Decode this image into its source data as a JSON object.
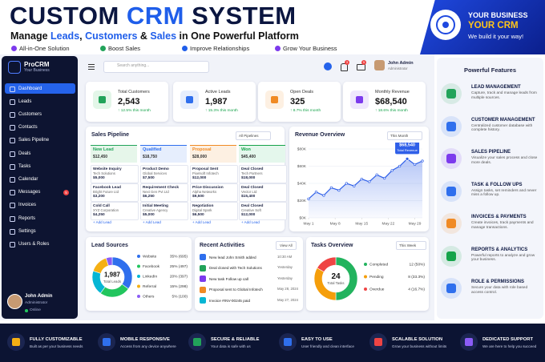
{
  "header": {
    "title": [
      "CUSTOM ",
      "CRM",
      " SYSTEM"
    ],
    "subtitle": [
      "Manage ",
      "Leads",
      ", ",
      "Customers",
      " & ",
      "Sales",
      " in One Powerful Platform"
    ],
    "tags": [
      "All-in-One Solution",
      "Boost Sales",
      "Improve Relationships",
      "Grow Your Business"
    ]
  },
  "badge": {
    "line1": "YOUR BUSINESS",
    "line2": "YOUR CRM",
    "line3": "We build it your way!"
  },
  "sidebar": {
    "brand": "ProCRM",
    "brand_sub": "Your Business",
    "menu": [
      {
        "label": "Dashboard"
      },
      {
        "label": "Leads"
      },
      {
        "label": "Customers"
      },
      {
        "label": "Contacts"
      },
      {
        "label": "Sales Pipeline"
      },
      {
        "label": "Deals"
      },
      {
        "label": "Tasks"
      },
      {
        "label": "Calendar"
      },
      {
        "label": "Messages",
        "badge": 5
      },
      {
        "label": "Invoices"
      },
      {
        "label": "Reports"
      },
      {
        "label": "Settings"
      },
      {
        "label": "Users & Roles"
      }
    ],
    "user": {
      "name": "John Admin",
      "role": "Administrator",
      "status": "Online"
    }
  },
  "topbar": {
    "search": "Search anything...",
    "notifications": 3,
    "mail": 5,
    "user": {
      "name": "John Admin",
      "role": "Administrator"
    }
  },
  "stats": [
    {
      "label": "Total Customers",
      "value": "2,543",
      "change": "↑ 12.5% this month"
    },
    {
      "label": "Active Leads",
      "value": "1,987",
      "change": "↑ 15.3% this month"
    },
    {
      "label": "Open Deals",
      "value": "325",
      "change": "↑ 8.7% this month"
    },
    {
      "label": "Monthly Revenue",
      "value": "$68,540",
      "change": "↑ 18.6% this month"
    }
  ],
  "pipeline": {
    "title": "Sales Pipeline",
    "filter": "All Pipelines",
    "add": "+ Add Lead",
    "columns": [
      {
        "name": "New Lead",
        "total": "$12,450",
        "cards": [
          {
            "title": "Website Inquiry",
            "company": "Tech Solutions",
            "amount": "$5,000"
          },
          {
            "title": "Facebook Lead",
            "company": "Bright Future Ltd",
            "amount": "$3,200"
          },
          {
            "title": "Cold Call",
            "company": "XYZ Corporation",
            "amount": "$4,250"
          }
        ]
      },
      {
        "name": "Qualified",
        "total": "$18,750",
        "cards": [
          {
            "title": "Product Demo",
            "company": "Global Services",
            "amount": "$7,500"
          },
          {
            "title": "Requirement Check",
            "company": "Next Gen Pvt Ltd",
            "amount": "$6,250"
          },
          {
            "title": "Initial Meeting",
            "company": "Creative Agency",
            "amount": "$5,000"
          }
        ]
      },
      {
        "name": "Proposal",
        "total": "$28,000",
        "cards": [
          {
            "title": "Proposal Sent",
            "company": "Pixelsoft Infotech",
            "amount": "$12,000"
          },
          {
            "title": "Price Discussion",
            "company": "Alpha Networks",
            "amount": "$9,500"
          },
          {
            "title": "Negotiation",
            "company": "Digital Spark",
            "amount": "$6,500"
          }
        ]
      },
      {
        "name": "Won",
        "total": "$45,400",
        "cards": [
          {
            "title": "Deal Closed",
            "company": "Tech Partners",
            "amount": "$18,000"
          },
          {
            "title": "Deal Closed",
            "company": "Vector Ltd",
            "amount": "$15,400"
          },
          {
            "title": "Deal Closed",
            "company": "Creative Soft",
            "amount": "$12,000"
          }
        ]
      }
    ]
  },
  "chart_data": [
    {
      "type": "line",
      "title": "Revenue Overview",
      "filter": "This Month",
      "color": "#2f5fe8",
      "grid": true,
      "x": [
        1,
        3,
        5,
        7,
        9,
        11,
        13,
        15,
        17,
        19,
        21,
        23,
        25,
        27,
        29,
        31
      ],
      "values": [
        22,
        30,
        26,
        35,
        32,
        40,
        37,
        45,
        42,
        50,
        46,
        55,
        60,
        68.54,
        62,
        66
      ],
      "xlim": [
        1,
        31
      ],
      "xticks": [
        {
          "value": 1,
          "label": "May 1"
        },
        {
          "value": 8,
          "label": "May 8"
        },
        {
          "value": 15,
          "label": "May 15"
        },
        {
          "value": 22,
          "label": "May 22"
        },
        {
          "value": 29,
          "label": "May 29"
        }
      ],
      "ylim": [
        0,
        80
      ],
      "yticks": [
        {
          "value": 0,
          "label": "$0K"
        },
        {
          "value": 20,
          "label": "$20K"
        },
        {
          "value": 40,
          "label": "$40K"
        },
        {
          "value": 60,
          "label": "$60K"
        },
        {
          "value": 80,
          "label": "$80K"
        }
      ],
      "annotations": [
        {
          "x": 27,
          "y": 68.54,
          "label": "$68,540",
          "text": "Total Revenue"
        }
      ]
    },
    {
      "type": "pie",
      "title": "Lead Sources",
      "categories": [
        "Website",
        "Facebook",
        "LinkedIn",
        "Referral",
        "Others"
      ],
      "values": [
        35,
        25,
        20,
        15,
        5
      ],
      "value_labels": [
        "35% (695)",
        "25% (497)",
        "20% (397)",
        "15% (298)",
        "5% (100)"
      ],
      "colors": [
        "#2f6fed",
        "#22c55e",
        "#06b6d4",
        "#f5b014",
        "#8b5cf6"
      ],
      "center": {
        "value": 1987,
        "label": "1,987"
      },
      "center_caption": "Total Leads"
    },
    {
      "type": "pie",
      "title": "Tasks Overview",
      "filter": "This Week",
      "categories": [
        "Completed",
        "Pending",
        "Overdue"
      ],
      "values": [
        12,
        8,
        4
      ],
      "value_labels": [
        "12 (50%)",
        "8 (33.3%)",
        "4 (16.7%)"
      ],
      "colors": [
        "#22b35e",
        "#f59e0b",
        "#ef4444"
      ],
      "center": 24,
      "center_caption": "Total Tasks"
    }
  ],
  "activities": {
    "title": "Recent Activities",
    "view_all": "View All",
    "items": [
      {
        "text": "New lead John Smith added",
        "time": "10:30 AM"
      },
      {
        "text": "Deal closed with Tech Solutions",
        "time": "Yesterday"
      },
      {
        "text": "New task Follow up call",
        "time": "Yesterday"
      },
      {
        "text": "Proposal sent to Global Infotech",
        "time": "May 28, 2024"
      },
      {
        "text": "Invoice #INV-00245 paid",
        "time": "May 27, 2024"
      }
    ]
  },
  "features": {
    "title": "Powerful Features",
    "items": [
      {
        "title": "LEAD MANAGEMENT",
        "desc": "Capture, track and manage leads from multiple sources."
      },
      {
        "title": "CUSTOMER MANAGEMENT",
        "desc": "Centralized customer database with complete history."
      },
      {
        "title": "SALES PIPELINE",
        "desc": "Visualize your sales process and close more deals."
      },
      {
        "title": "TASK & FOLLOW UPS",
        "desc": "Assign tasks, set reminders and never miss a follow up."
      },
      {
        "title": "INVOICES & PAYMENTS",
        "desc": "Create invoices, track payments and manage transactions."
      },
      {
        "title": "REPORTS & ANALYTICS",
        "desc": "Powerful reports to analyze and grow your business."
      },
      {
        "title": "ROLE & PERMISSIONS",
        "desc": "Secure your data with role based access control."
      }
    ]
  },
  "footer": [
    {
      "title": "FULLY CUSTOMIZABLE",
      "desc": "Built as per your business needs"
    },
    {
      "title": "MOBILE RESPONSIVE",
      "desc": "Access from any device anywhere"
    },
    {
      "title": "SECURE & RELIABLE",
      "desc": "Your data is safe with us"
    },
    {
      "title": "EASY TO USE",
      "desc": "User friendly and clean interface"
    },
    {
      "title": "SCALABLE SOLUTION",
      "desc": "Grow your business without limits"
    },
    {
      "title": "DEDICATED SUPPORT",
      "desc": "We are here to help you succeed"
    }
  ]
}
